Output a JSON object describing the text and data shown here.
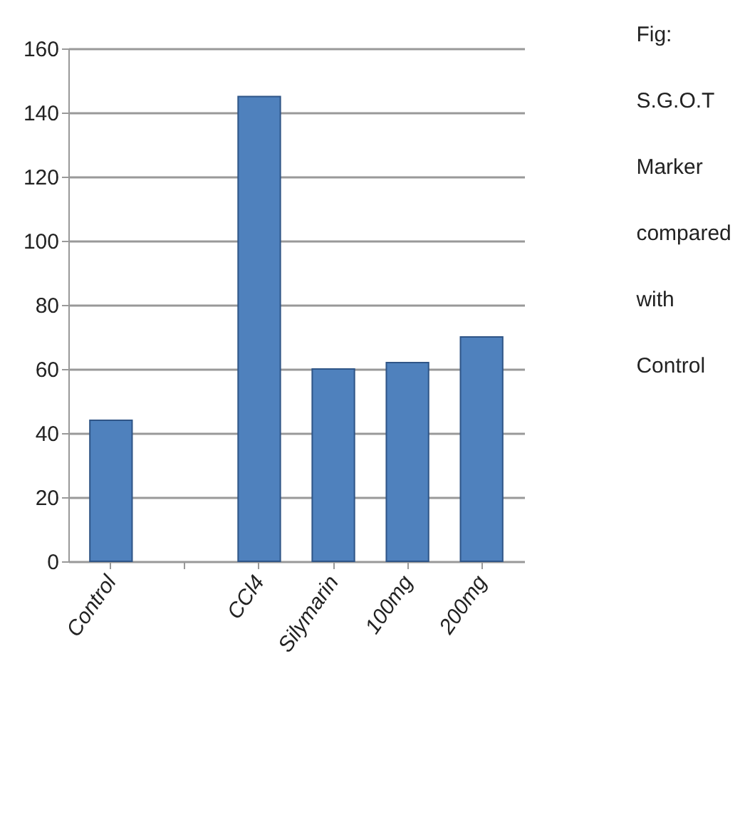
{
  "chart_data": {
    "type": "bar",
    "title": "Fig: S.G.O.T Marker compared with Control",
    "categories": [
      "Control",
      null,
      "CCl4",
      "Silymarin",
      "100mg",
      "200mg"
    ],
    "values": [
      44,
      null,
      145,
      60,
      62,
      70
    ],
    "color": "#4f81bd",
    "ylim": [
      0,
      160
    ],
    "yticks": [
      0,
      20,
      40,
      60,
      80,
      100,
      120,
      140,
      160
    ],
    "grid": "y"
  }
}
